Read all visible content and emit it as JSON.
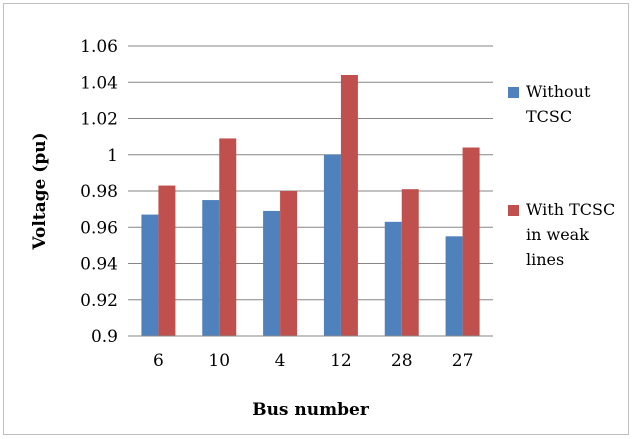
{
  "chart_data": {
    "type": "bar",
    "categories": [
      "6",
      "10",
      "4",
      "12",
      "28",
      "27"
    ],
    "series": [
      {
        "name": "Without TCSC",
        "color": "#4f81bd",
        "values": [
          0.967,
          0.975,
          0.969,
          1.0,
          0.963,
          0.955
        ]
      },
      {
        "name": "With TCSC in weak lines",
        "color": "#c0504d",
        "values": [
          0.983,
          1.009,
          0.98,
          1.044,
          0.981,
          1.004
        ]
      }
    ],
    "legend": {
      "position": "right",
      "entries": [
        {
          "lines": [
            "Without",
            "TCSC"
          ]
        },
        {
          "lines": [
            "With TCSC",
            "in weak",
            "lines"
          ]
        }
      ]
    },
    "xlabel": "Bus number",
    "ylabel": "Voltage (pu)",
    "ylim": [
      0.9,
      1.06
    ],
    "yticks": [
      "0.9",
      "0.92",
      "0.94",
      "0.96",
      "0.98",
      "1",
      "1.02",
      "1.04",
      "1.06"
    ],
    "grid": true
  }
}
